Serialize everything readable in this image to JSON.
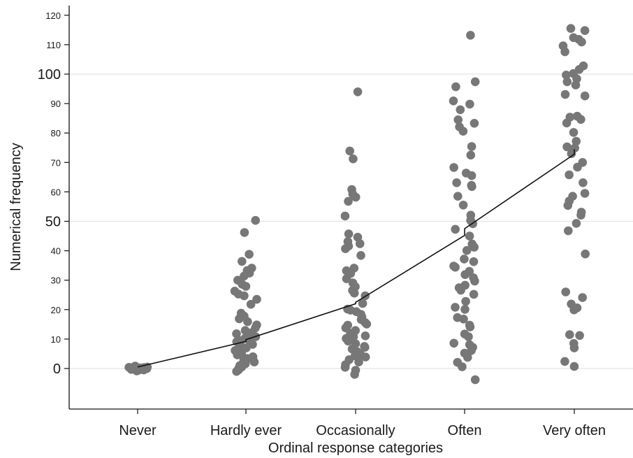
{
  "chart_data": {
    "type": "scatter",
    "title": "",
    "xlabel": "Ordinal response categories",
    "ylabel": "Numerical frequency",
    "categories": [
      "Never",
      "Hardly ever",
      "Occasionally",
      "Often",
      "Very often"
    ],
    "ylim": [
      -12,
      122
    ],
    "yticks_major": [
      0,
      50,
      100
    ],
    "yticks_minor": [
      10,
      20,
      30,
      40,
      60,
      70,
      80,
      90,
      110,
      120
    ],
    "grid": "horizontal gridlines at 0, 50, 100",
    "legend": "none",
    "colors": {
      "points": "#777777",
      "line": "#111111",
      "grid": "#e3e3e3",
      "axis": "#111111"
    },
    "series": [
      {
        "kind": "points",
        "points": [
          [
            0,
            0
          ],
          [
            0,
            0.4
          ],
          [
            0,
            -0.4
          ],
          [
            0,
            0.8
          ],
          [
            0,
            -0.8
          ],
          [
            0,
            0.2
          ],
          [
            0,
            -0.2
          ],
          [
            0,
            0.6
          ],
          [
            0,
            -0.6
          ],
          [
            0,
            0
          ],
          [
            0,
            0.3
          ],
          [
            0,
            -0.3
          ],
          [
            0,
            0.5
          ],
          [
            0,
            -0.5
          ],
          [
            0,
            0.1
          ],
          [
            1,
            50.3
          ],
          [
            1,
            46.2
          ],
          [
            1,
            38.8
          ],
          [
            1,
            36.4
          ],
          [
            1,
            34.1
          ],
          [
            1,
            33.3
          ],
          [
            1,
            32.4
          ],
          [
            1,
            31.4
          ],
          [
            1,
            30
          ],
          [
            1,
            28.6
          ],
          [
            1,
            27.9
          ],
          [
            1,
            26.3
          ],
          [
            1,
            25.3
          ],
          [
            1,
            24.7
          ],
          [
            1,
            23.5
          ],
          [
            1,
            21.8
          ],
          [
            1,
            18.8
          ],
          [
            1,
            17.8
          ],
          [
            1,
            16.9
          ],
          [
            1,
            15.9
          ],
          [
            1,
            14.8
          ],
          [
            1,
            13.8
          ],
          [
            1,
            12.9
          ],
          [
            1,
            12.2
          ],
          [
            1,
            11.5
          ],
          [
            1,
            10.8
          ],
          [
            1,
            10.2
          ],
          [
            1,
            9.5
          ],
          [
            1,
            8.9
          ],
          [
            1,
            8.2
          ],
          [
            1,
            7.6
          ],
          [
            1,
            7
          ],
          [
            1,
            6.4
          ],
          [
            1,
            5.8
          ],
          [
            1,
            5.2
          ],
          [
            1,
            4.6
          ],
          [
            1,
            4
          ],
          [
            1,
            3.4
          ],
          [
            1,
            2.8
          ],
          [
            1,
            2.2
          ],
          [
            1,
            1.6
          ],
          [
            1,
            1
          ],
          [
            1,
            0.5
          ],
          [
            1,
            0
          ],
          [
            1,
            -0.5
          ],
          [
            1,
            -1
          ],
          [
            1,
            3.1
          ],
          [
            1,
            6.1
          ],
          [
            1,
            9.1
          ],
          [
            1,
            11.8
          ],
          [
            2,
            94
          ],
          [
            2,
            73.9
          ],
          [
            2,
            71.2
          ],
          [
            2,
            60.8
          ],
          [
            2,
            59.3
          ],
          [
            2,
            58.2
          ],
          [
            2,
            56.8
          ],
          [
            2,
            51.8
          ],
          [
            2,
            45.7
          ],
          [
            2,
            44.6
          ],
          [
            2,
            43.1
          ],
          [
            2,
            42.4
          ],
          [
            2,
            41.6
          ],
          [
            2,
            40.7
          ],
          [
            2,
            38.4
          ],
          [
            2,
            34.1
          ],
          [
            2,
            33.2
          ],
          [
            2,
            32.3
          ],
          [
            2,
            30.5
          ],
          [
            2,
            29.1
          ],
          [
            2,
            27.8
          ],
          [
            2,
            26.5
          ],
          [
            2,
            25.6
          ],
          [
            2,
            24.7
          ],
          [
            2,
            22.1
          ],
          [
            2,
            20.2
          ],
          [
            2,
            19.3
          ],
          [
            2,
            18.4
          ],
          [
            2,
            17.5
          ],
          [
            2,
            16.6
          ],
          [
            2,
            15.6
          ],
          [
            2,
            14.7
          ],
          [
            2,
            13.8
          ],
          [
            2,
            12.9
          ],
          [
            2,
            12
          ],
          [
            2,
            11.1
          ],
          [
            2,
            10.2
          ],
          [
            2,
            9.3
          ],
          [
            2,
            8.4
          ],
          [
            2,
            7.5
          ],
          [
            2,
            6.6
          ],
          [
            2,
            5.7
          ],
          [
            2,
            4.8
          ],
          [
            2,
            3.9
          ],
          [
            2,
            3
          ],
          [
            2,
            2.2
          ],
          [
            2,
            1.3
          ],
          [
            2,
            0.4
          ],
          [
            2,
            -0.6
          ],
          [
            2,
            -2
          ],
          [
            2,
            4.3
          ],
          [
            2,
            7.2
          ],
          [
            2,
            10.8
          ],
          [
            2,
            15.1
          ],
          [
            2,
            19.8
          ],
          [
            3,
            113.2
          ],
          [
            3,
            97.4
          ],
          [
            3,
            95.7
          ],
          [
            3,
            90.9
          ],
          [
            3,
            89.8
          ],
          [
            3,
            87.9
          ],
          [
            3,
            84.5
          ],
          [
            3,
            83.3
          ],
          [
            3,
            82.1
          ],
          [
            3,
            80.6
          ],
          [
            3,
            75.4
          ],
          [
            3,
            72.5
          ],
          [
            3,
            68.3
          ],
          [
            3,
            66.4
          ],
          [
            3,
            65.5
          ],
          [
            3,
            63.1
          ],
          [
            3,
            62.2
          ],
          [
            3,
            61.8
          ],
          [
            3,
            58.5
          ],
          [
            3,
            55.5
          ],
          [
            3,
            52.1
          ],
          [
            3,
            50.3
          ],
          [
            3,
            49.2
          ],
          [
            3,
            47.3
          ],
          [
            3,
            45
          ],
          [
            3,
            42.3
          ],
          [
            3,
            41.2
          ],
          [
            3,
            40.1
          ],
          [
            3,
            37.2
          ],
          [
            3,
            36.3
          ],
          [
            3,
            34.8
          ],
          [
            3,
            34.4
          ],
          [
            3,
            33
          ],
          [
            3,
            31.9
          ],
          [
            3,
            30.8
          ],
          [
            3,
            29.7
          ],
          [
            3,
            28.3
          ],
          [
            3,
            27.4
          ],
          [
            3,
            26.6
          ],
          [
            3,
            25.2
          ],
          [
            3,
            22.8
          ],
          [
            3,
            20.8
          ],
          [
            3,
            20.1
          ],
          [
            3,
            17.3
          ],
          [
            3,
            16.8
          ],
          [
            3,
            14.7
          ],
          [
            3,
            14.1
          ],
          [
            3,
            11.7
          ],
          [
            3,
            10.8
          ],
          [
            3,
            8.6
          ],
          [
            3,
            8.1
          ],
          [
            3,
            7.2
          ],
          [
            3,
            6.1
          ],
          [
            3,
            5.2
          ],
          [
            3,
            3.8
          ],
          [
            3,
            2.1
          ],
          [
            3,
            0.6
          ],
          [
            3,
            -3.8
          ],
          [
            4,
            115.5
          ],
          [
            4,
            114.8
          ],
          [
            4,
            112.4
          ],
          [
            4,
            111.8
          ],
          [
            4,
            110.9
          ],
          [
            4,
            109.6
          ],
          [
            4,
            107.6
          ],
          [
            4,
            102.8
          ],
          [
            4,
            101.6
          ],
          [
            4,
            100.2
          ],
          [
            4,
            99.7
          ],
          [
            4,
            98.4
          ],
          [
            4,
            97.4
          ],
          [
            4,
            96.3
          ],
          [
            4,
            93.1
          ],
          [
            4,
            92.6
          ],
          [
            4,
            85.7
          ],
          [
            4,
            85.4
          ],
          [
            4,
            84.6
          ],
          [
            4,
            83.4
          ],
          [
            4,
            80.2
          ],
          [
            4,
            77.2
          ],
          [
            4,
            75.3
          ],
          [
            4,
            74.9
          ],
          [
            4,
            73
          ],
          [
            4,
            70
          ],
          [
            4,
            68.4
          ],
          [
            4,
            65.8
          ],
          [
            4,
            63.1
          ],
          [
            4,
            59.5
          ],
          [
            4,
            58.5
          ],
          [
            4,
            56.9
          ],
          [
            4,
            55.4
          ],
          [
            4,
            53.1
          ],
          [
            4,
            52.1
          ],
          [
            4,
            49.3
          ],
          [
            4,
            46.8
          ],
          [
            4,
            38.9
          ],
          [
            4,
            26
          ],
          [
            4,
            24.1
          ],
          [
            4,
            21.9
          ],
          [
            4,
            20.6
          ],
          [
            4,
            19.9
          ],
          [
            4,
            11.5
          ],
          [
            4,
            11.2
          ],
          [
            4,
            8.5
          ],
          [
            4,
            7
          ],
          [
            4,
            2.4
          ],
          [
            4,
            0.7
          ]
        ]
      },
      {
        "kind": "line",
        "points": [
          [
            0,
            0.5
          ],
          [
            1,
            9.2
          ],
          [
            1,
            9.8
          ],
          [
            2,
            22
          ],
          [
            2,
            22.5
          ],
          [
            3,
            45.2
          ],
          [
            3,
            47.5
          ],
          [
            4,
            72.8
          ],
          [
            4,
            74.5
          ]
        ]
      }
    ]
  }
}
